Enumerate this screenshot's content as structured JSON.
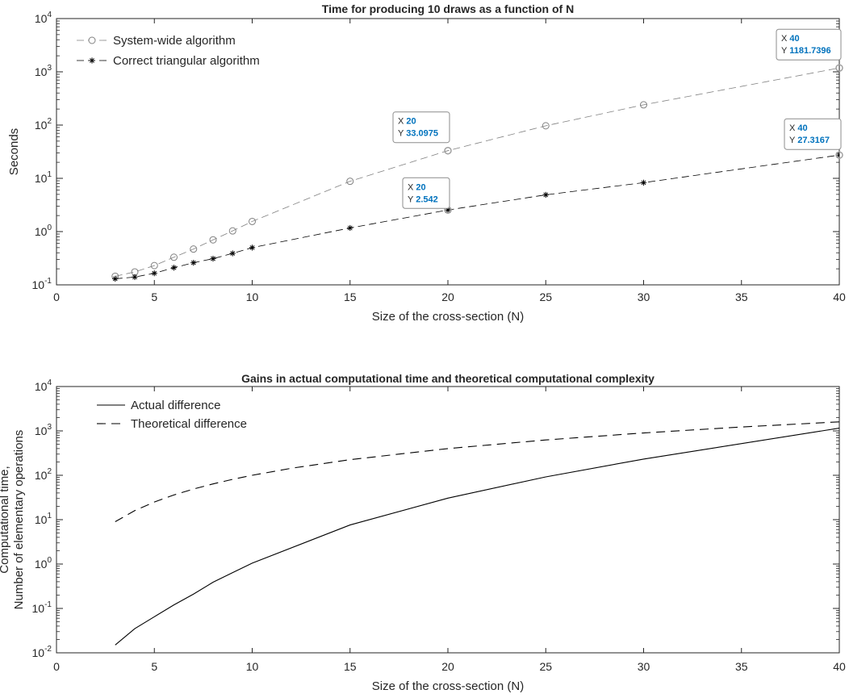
{
  "chart_data": [
    {
      "type": "line",
      "title": "Time for producing 10 draws as a function of N",
      "xlabel": "Size of the cross-section (N)",
      "ylabel": "Seconds",
      "xlim": [
        0,
        40
      ],
      "ylim": [
        0.1,
        10000
      ],
      "yscale": "log",
      "x_ticks": [
        "0",
        "5",
        "10",
        "15",
        "20",
        "25",
        "30",
        "35",
        "40"
      ],
      "y_ticks": [
        {
          "base": "10",
          "exp": "-1"
        },
        {
          "base": "10",
          "exp": "0"
        },
        {
          "base": "10",
          "exp": "1"
        },
        {
          "base": "10",
          "exp": "2"
        },
        {
          "base": "10",
          "exp": "3"
        },
        {
          "base": "10",
          "exp": "4"
        }
      ],
      "grid": false,
      "legend_position": "top-left",
      "series": [
        {
          "name": "System-wide algorithm",
          "marker": "circle",
          "color": "#808080",
          "x": [
            3,
            4,
            5,
            6,
            7,
            8,
            9,
            10,
            15,
            20,
            25,
            30,
            40
          ],
          "y": [
            0.145,
            0.175,
            0.23,
            0.33,
            0.47,
            0.7,
            1.03,
            1.55,
            8.8,
            33.0975,
            97,
            240,
            1181.7396
          ]
        },
        {
          "name": "Correct triangular algorithm",
          "marker": "asterisk",
          "color": "#000000",
          "x": [
            3,
            4,
            5,
            6,
            7,
            8,
            9,
            10,
            15,
            20,
            25,
            30,
            40
          ],
          "y": [
            0.13,
            0.14,
            0.165,
            0.21,
            0.26,
            0.31,
            0.39,
            0.5,
            1.17,
            2.542,
            4.9,
            8.3,
            27.3167
          ]
        }
      ],
      "datatips": [
        {
          "series": 0,
          "x": 20,
          "y": 33.0975,
          "x_text": "20",
          "y_text": "33.0975",
          "x_key": "X",
          "y_key": "Y"
        },
        {
          "series": 1,
          "x": 20,
          "y": 2.542,
          "x_text": "20",
          "y_text": "2.542",
          "x_key": "X",
          "y_key": "Y"
        },
        {
          "series": 0,
          "x": 40,
          "y": 1181.7396,
          "x_text": "40",
          "y_text": "1181.7396",
          "x_key": "X",
          "y_key": "Y"
        },
        {
          "series": 1,
          "x": 40,
          "y": 27.3167,
          "x_text": "40",
          "y_text": "27.3167",
          "x_key": "X",
          "y_key": "Y"
        }
      ]
    },
    {
      "type": "line",
      "title": "Gains in actual computational time and theoretical computational complexity",
      "xlabel": "Size of the cross-section (N)",
      "ylabel_lines": [
        "Computational time,",
        "Number of elementary operations"
      ],
      "xlim": [
        0,
        40
      ],
      "ylim": [
        0.01,
        10000
      ],
      "yscale": "log",
      "x_ticks": [
        "0",
        "5",
        "10",
        "15",
        "20",
        "25",
        "30",
        "35",
        "40"
      ],
      "y_ticks": [
        {
          "base": "10",
          "exp": "-2"
        },
        {
          "base": "10",
          "exp": "-1"
        },
        {
          "base": "10",
          "exp": "0"
        },
        {
          "base": "10",
          "exp": "1"
        },
        {
          "base": "10",
          "exp": "2"
        },
        {
          "base": "10",
          "exp": "3"
        },
        {
          "base": "10",
          "exp": "4"
        }
      ],
      "grid": false,
      "legend_position": "top-left",
      "series": [
        {
          "name": "Actual difference",
          "dash": "solid",
          "color": "#000000",
          "x": [
            3,
            4,
            5,
            6,
            7,
            8,
            9,
            10,
            15,
            20,
            25,
            30,
            40
          ],
          "y": [
            0.015,
            0.035,
            0.065,
            0.12,
            0.21,
            0.39,
            0.64,
            1.05,
            7.6,
            30.6,
            92,
            232,
            1154
          ]
        },
        {
          "name": "Theoretical difference",
          "dash": "dashed",
          "color": "#000000",
          "x": [
            3,
            4,
            5,
            6,
            7,
            8,
            9,
            10,
            12,
            15,
            20,
            25,
            30,
            35,
            40
          ],
          "y": [
            9,
            16,
            25,
            36,
            49,
            64,
            81,
            100,
            144,
            225,
            400,
            625,
            900,
            1225,
            1600
          ]
        }
      ]
    }
  ]
}
